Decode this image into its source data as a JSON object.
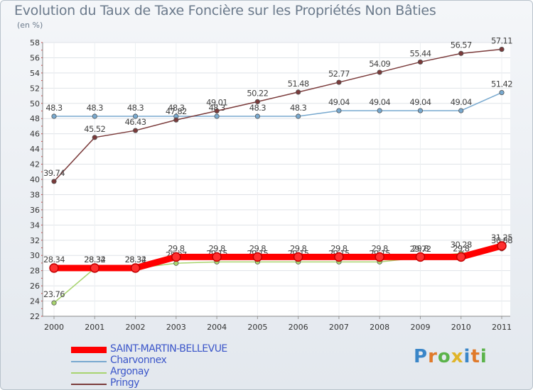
{
  "title": "Evolution du Taux de Taxe Foncière sur les Propriétés Non Bâties",
  "unit_label": "(en %)",
  "logo": {
    "letters": [
      "P",
      "r",
      "o",
      "x",
      "i",
      "t",
      "i"
    ],
    "colors": [
      "#3a86c8",
      "#e07a2a",
      "#5bb34a",
      "#e0b52a",
      "#3a86c8",
      "#e07a2a",
      "#5bb34a"
    ]
  },
  "chart_data": {
    "type": "line",
    "title": "Evolution du Taux de Taxe Foncière sur les Propriétés Non Bâties",
    "ylabel": "(en %)",
    "xlabel": "",
    "x": [
      "2000",
      "2001",
      "2002",
      "2003",
      "2004",
      "2005",
      "2006",
      "2007",
      "2008",
      "2009",
      "2010",
      "2011"
    ],
    "ylim": [
      22,
      58
    ],
    "yticks": [
      22,
      24,
      26,
      28,
      30,
      32,
      34,
      36,
      38,
      40,
      42,
      44,
      46,
      48,
      50,
      52,
      54,
      56,
      58
    ],
    "grid": true,
    "legend_position": "bottom-left",
    "series": [
      {
        "name": "SAINT-MARTIN-BELLEVUE",
        "color": "#ff0000",
        "emphasis": true,
        "values": [
          28.34,
          28.34,
          28.34,
          29.8,
          29.8,
          29.8,
          29.8,
          29.8,
          29.8,
          29.8,
          29.8,
          31.25
        ],
        "labels": [
          "28.34",
          "28.34",
          "28.34",
          "29.8",
          "29.8",
          "29.8",
          "29.8",
          "29.8",
          "29.8",
          "29.8",
          "29.8",
          "31.25"
        ]
      },
      {
        "name": "Charvonnex",
        "color": "#78a9cf",
        "values": [
          48.3,
          48.3,
          48.3,
          48.3,
          48.3,
          48.3,
          48.3,
          49.04,
          49.04,
          49.04,
          49.04,
          51.42
        ],
        "labels": [
          "48.3",
          "48.3",
          "48.3",
          "48.3",
          "48.3",
          "48.3",
          "48.3",
          "49.04",
          "49.04",
          "49.04",
          "49.04",
          "51.42"
        ]
      },
      {
        "name": "Argonay",
        "color": "#a8d46f",
        "values": [
          23.76,
          28.32,
          28.32,
          28.97,
          29.15,
          29.15,
          29.15,
          29.15,
          29.15,
          29.72,
          30.28,
          30.88
        ],
        "labels": [
          "23.76",
          "28.32",
          "28.32",
          "28.97",
          "29.15",
          "29.15",
          "29.15",
          "29.15",
          "29.15",
          "29.72",
          "30.28",
          "30.88"
        ]
      },
      {
        "name": "Pringy",
        "color": "#7a3a3a",
        "values": [
          39.74,
          45.52,
          46.43,
          47.82,
          49.01,
          50.22,
          51.48,
          52.77,
          54.09,
          55.44,
          56.57,
          57.11
        ],
        "labels": [
          "39.74",
          "45.52",
          "46.43",
          "47.82",
          "49.01",
          "50.22",
          "51.48",
          "52.77",
          "54.09",
          "55.44",
          "56.57",
          "57.11"
        ]
      }
    ]
  }
}
